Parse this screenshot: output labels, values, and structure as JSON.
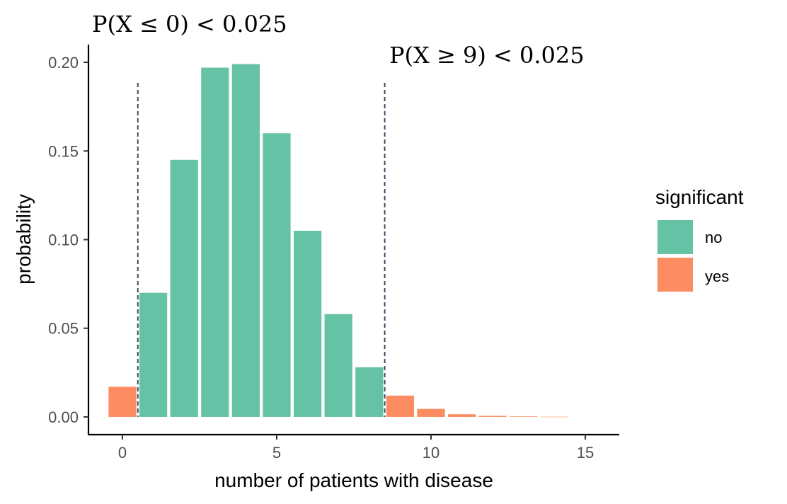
{
  "chart_data": {
    "type": "bar",
    "xlabel": "number of patients with disease",
    "ylabel": "probability",
    "xlim": [
      -1.1,
      16.1
    ],
    "ylim": [
      -0.01,
      0.21
    ],
    "xticks": [
      0,
      5,
      10,
      15
    ],
    "yticks": [
      0.0,
      0.05,
      0.1,
      0.15,
      0.2
    ],
    "ytick_labels": [
      "0.00",
      "0.05",
      "0.10",
      "0.15",
      "0.20"
    ],
    "x": [
      0,
      1,
      2,
      3,
      4,
      5,
      6,
      7,
      8,
      9,
      10,
      11,
      12,
      13,
      14
    ],
    "values": [
      0.017,
      0.07,
      0.145,
      0.197,
      0.199,
      0.16,
      0.105,
      0.058,
      0.028,
      0.012,
      0.0045,
      0.0015,
      0.0006,
      0.0003,
      0.0001
    ],
    "significant": [
      "yes",
      "no",
      "no",
      "no",
      "no",
      "no",
      "no",
      "no",
      "no",
      "yes",
      "yes",
      "yes",
      "yes",
      "yes",
      "yes"
    ],
    "legend": {
      "title": "significant",
      "entries": [
        {
          "label": "no",
          "color": "#66c2a5"
        },
        {
          "label": "yes",
          "color": "#fc8d62"
        }
      ],
      "position": "right"
    },
    "reference_lines": [
      0.5,
      8.5
    ],
    "annotations": [
      {
        "text": "P(X ≤ 0) < 0.025"
      },
      {
        "text": "P(X ≥ 9) < 0.025"
      }
    ],
    "grid": false
  }
}
